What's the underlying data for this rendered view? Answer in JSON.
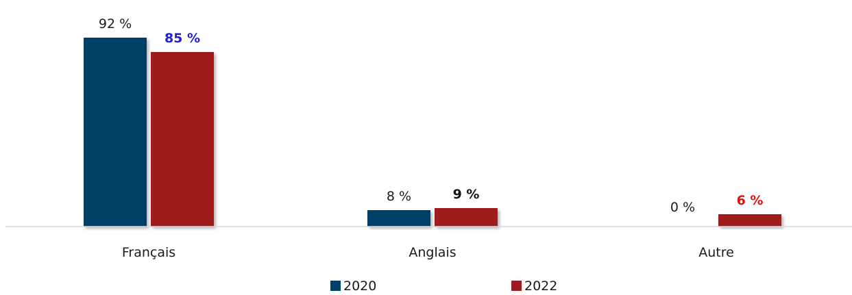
{
  "chart_data": {
    "type": "bar",
    "categories": [
      "Français",
      "Anglais",
      "Autre"
    ],
    "series": [
      {
        "name": "2020",
        "values": [
          92,
          8,
          0
        ],
        "labels": [
          "92 %",
          "8 %",
          "0 %"
        ],
        "color": "#003f66",
        "label_color": "#1a1a1a",
        "label_bold": false
      },
      {
        "name": "2022",
        "values": [
          85,
          9,
          6
        ],
        "labels": [
          "85 %",
          "9 %",
          "6 %"
        ],
        "color": "#a01c1c",
        "label_colors": [
          "#1f1fd6",
          "#111111",
          "#e01010"
        ],
        "label_bold": true
      }
    ],
    "ylim": [
      0,
      100
    ],
    "grid": false,
    "legend_position": "bottom-center"
  }
}
